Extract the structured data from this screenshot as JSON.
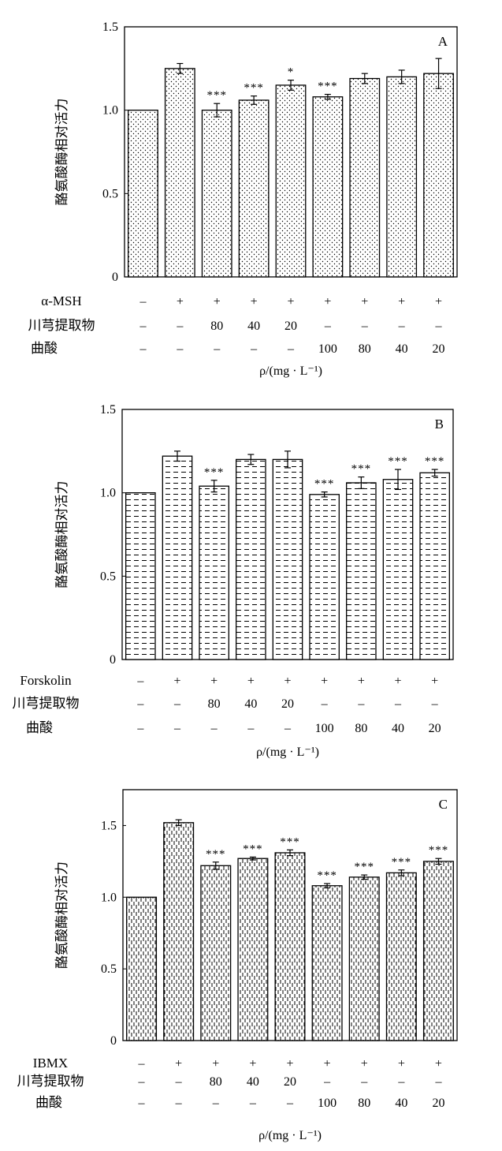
{
  "chart_data": [
    {
      "type": "bar",
      "panel_label": "A",
      "ylabel": "酪氨酸酶相对活力",
      "ylim": [
        0,
        1.5
      ],
      "yticks": [
        "0",
        "0.5",
        "1.0",
        "1.5"
      ],
      "ytick_values": [
        0,
        0.5,
        1.0,
        1.5
      ],
      "pattern": "dots",
      "values": [
        1.0,
        1.25,
        1.0,
        1.06,
        1.15,
        1.08,
        1.19,
        1.2,
        1.22
      ],
      "errors": [
        0,
        0.03,
        0.04,
        0.025,
        0.03,
        0.015,
        0.03,
        0.04,
        0.09
      ],
      "significance": [
        "",
        "",
        "***",
        "***",
        "*",
        "***",
        "",
        "",
        ""
      ],
      "conditions": [
        {
          "label": "α-MSH",
          "values": [
            "–",
            "+",
            "+",
            "+",
            "+",
            "+",
            "+",
            "+",
            "+"
          ]
        },
        {
          "label": "川芎提取物",
          "values": [
            "–",
            "–",
            "80",
            "40",
            "20",
            "–",
            "–",
            "–",
            "–"
          ]
        },
        {
          "label": "曲酸",
          "values": [
            "–",
            "–",
            "–",
            "–",
            "–",
            "100",
            "80",
            "40",
            "20"
          ]
        }
      ],
      "unit_label": "ρ/(mg · L⁻¹)"
    },
    {
      "type": "bar",
      "panel_label": "B",
      "ylabel": "酪氨酸酶相对活力",
      "ylim": [
        0,
        1.5
      ],
      "yticks": [
        "0",
        "0.5",
        "1.0",
        "1.5"
      ],
      "ytick_values": [
        0,
        0.5,
        1.0,
        1.5
      ],
      "pattern": "dashes",
      "values": [
        1.0,
        1.22,
        1.04,
        1.2,
        1.2,
        0.99,
        1.06,
        1.08,
        1.12
      ],
      "errors": [
        0,
        0.03,
        0.035,
        0.03,
        0.05,
        0.015,
        0.035,
        0.06,
        0.02
      ],
      "significance": [
        "",
        "",
        "***",
        "",
        "",
        "***",
        "***",
        "***",
        "***"
      ],
      "conditions": [
        {
          "label": "Forskolin",
          "values": [
            "–",
            "+",
            "+",
            "+",
            "+",
            "+",
            "+",
            "+",
            "+"
          ]
        },
        {
          "label": "川芎提取物",
          "values": [
            "–",
            "–",
            "80",
            "40",
            "20",
            "–",
            "–",
            "–",
            "–"
          ]
        },
        {
          "label": "曲酸",
          "values": [
            "–",
            "–",
            "–",
            "–",
            "–",
            "100",
            "80",
            "40",
            "20"
          ]
        }
      ],
      "unit_label": "ρ/(mg · L⁻¹)"
    },
    {
      "type": "bar",
      "panel_label": "C",
      "ylabel": "酪氨酸酶相对活力",
      "ylim": [
        0,
        1.75
      ],
      "yticks": [
        "0",
        "0.5",
        "1.0",
        "1.5"
      ],
      "ytick_values": [
        0,
        0.5,
        1.0,
        1.5
      ],
      "pattern": "vlines",
      "values": [
        1.0,
        1.52,
        1.22,
        1.27,
        1.31,
        1.08,
        1.14,
        1.17,
        1.25
      ],
      "errors": [
        0,
        0.02,
        0.025,
        0.01,
        0.02,
        0.015,
        0.015,
        0.02,
        0.02
      ],
      "significance": [
        "",
        "",
        "***",
        "***",
        "***",
        "***",
        "***",
        "***",
        "***"
      ],
      "conditions": [
        {
          "label": "IBMX",
          "values": [
            "–",
            "+",
            "+",
            "+",
            "+",
            "+",
            "+",
            "+",
            "+"
          ]
        },
        {
          "label": "川芎提取物",
          "values": [
            "–",
            "–",
            "80",
            "40",
            "20",
            "–",
            "–",
            "–",
            "–"
          ]
        },
        {
          "label": "曲酸",
          "values": [
            "–",
            "–",
            "–",
            "–",
            "–",
            "100",
            "80",
            "40",
            "20"
          ]
        }
      ],
      "unit_label": "ρ/(mg · L⁻¹)"
    }
  ]
}
